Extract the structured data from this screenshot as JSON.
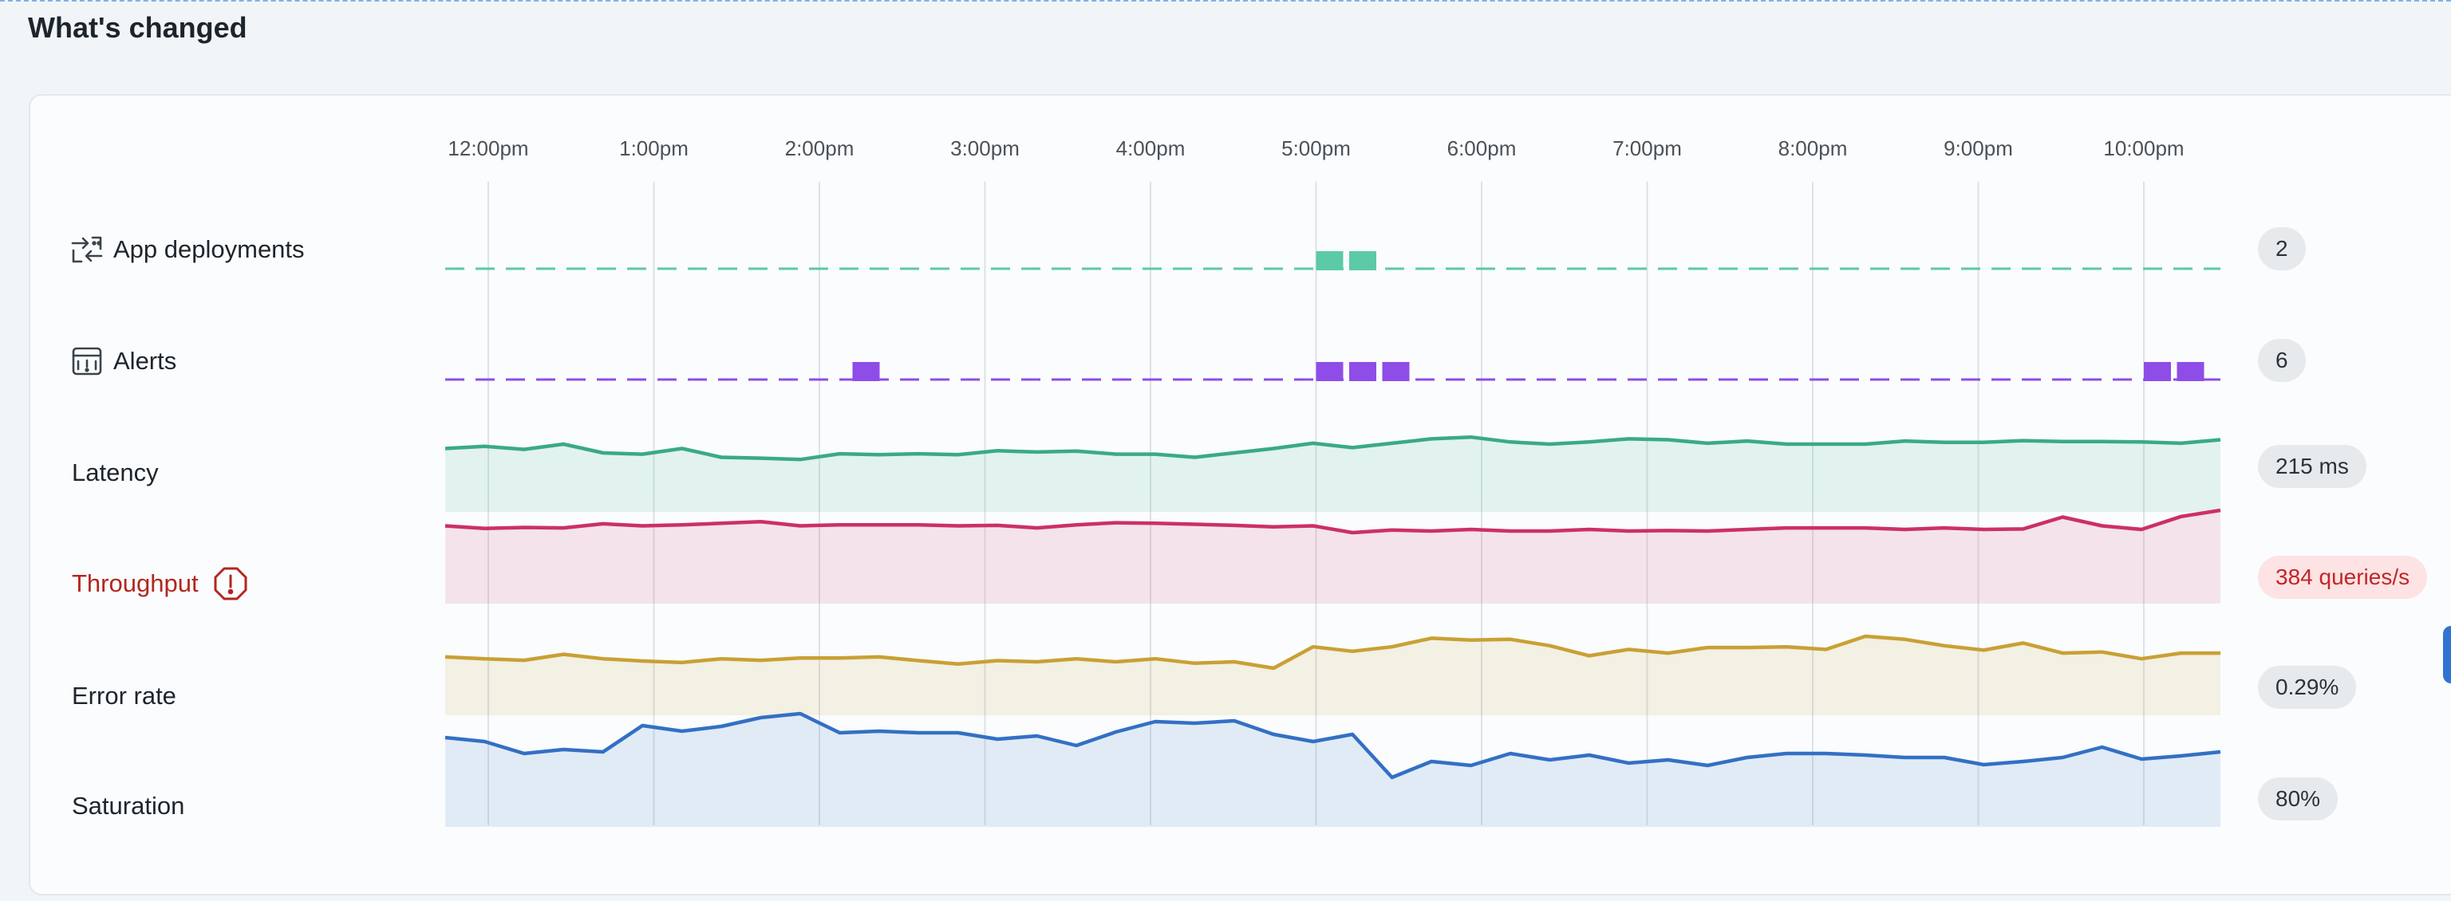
{
  "section_title": "What's changed",
  "time_axis": [
    "12:00pm",
    "1:00pm",
    "2:00pm",
    "3:00pm",
    "4:00pm",
    "5:00pm",
    "6:00pm",
    "7:00pm",
    "8:00pm",
    "9:00pm",
    "10:00pm"
  ],
  "colors": {
    "deployments": "#5cc9a7",
    "alerts": "#8f4de8",
    "latency": "#3aa98a",
    "throughput": "#cc2f6a",
    "error_rate": "#c9a034",
    "saturation": "#3370c4",
    "critical_text": "#b3261e"
  },
  "rows": {
    "app_deployments": {
      "label": "App deployments",
      "icon": "deployments-icon",
      "value": "2",
      "event_positions": [
        5.0,
        5.2
      ]
    },
    "alerts": {
      "label": "Alerts",
      "icon": "alert-bell-icon",
      "value": "6",
      "event_positions": [
        2.2,
        5.0,
        5.2,
        5.4,
        10.0,
        10.2
      ]
    },
    "latency": {
      "label": "Latency",
      "value": "215 ms",
      "series": [
        0.5,
        0.55,
        0.48,
        0.6,
        0.4,
        0.37,
        0.5,
        0.3,
        0.28,
        0.25,
        0.38,
        0.36,
        0.38,
        0.36,
        0.45,
        0.42,
        0.44,
        0.37,
        0.37,
        0.3,
        0.4,
        0.5,
        0.62,
        0.52,
        0.62,
        0.72,
        0.76,
        0.65,
        0.6,
        0.65,
        0.72,
        0.7,
        0.62,
        0.67,
        0.6,
        0.6,
        0.6,
        0.67,
        0.64,
        0.64,
        0.68,
        0.66,
        0.66,
        0.65,
        0.62,
        0.7
      ]
    },
    "throughput": {
      "label": "Throughput",
      "value": "384 queries/s",
      "critical": true,
      "series": [
        0.7,
        0.65,
        0.67,
        0.66,
        0.74,
        0.7,
        0.72,
        0.75,
        0.78,
        0.7,
        0.72,
        0.72,
        0.72,
        0.7,
        0.71,
        0.66,
        0.72,
        0.76,
        0.75,
        0.73,
        0.71,
        0.68,
        0.7,
        0.57,
        0.62,
        0.6,
        0.63,
        0.6,
        0.6,
        0.63,
        0.6,
        0.61,
        0.6,
        0.63,
        0.66,
        0.66,
        0.66,
        0.63,
        0.66,
        0.63,
        0.64,
        0.87,
        0.7,
        0.63,
        0.88,
        1.0
      ]
    },
    "error_rate": {
      "label": "Error rate",
      "value": "0.29%",
      "series": [
        0.45,
        0.4,
        0.36,
        0.52,
        0.4,
        0.34,
        0.3,
        0.4,
        0.36,
        0.42,
        0.42,
        0.45,
        0.35,
        0.26,
        0.35,
        0.32,
        0.4,
        0.32,
        0.4,
        0.28,
        0.32,
        0.15,
        0.72,
        0.6,
        0.72,
        0.95,
        0.9,
        0.92,
        0.75,
        0.48,
        0.65,
        0.55,
        0.7,
        0.7,
        0.72,
        0.65,
        1.0,
        0.92,
        0.75,
        0.63,
        0.82,
        0.55,
        0.58,
        0.4,
        0.55,
        0.55
      ]
    },
    "saturation": {
      "label": "Saturation",
      "value": "80%",
      "series": [
        0.6,
        0.55,
        0.4,
        0.45,
        0.42,
        0.75,
        0.68,
        0.74,
        0.85,
        0.9,
        0.66,
        0.68,
        0.66,
        0.66,
        0.58,
        0.62,
        0.5,
        0.67,
        0.8,
        0.78,
        0.81,
        0.64,
        0.55,
        0.64,
        0.1,
        0.3,
        0.25,
        0.4,
        0.32,
        0.38,
        0.28,
        0.32,
        0.25,
        0.35,
        0.4,
        0.4,
        0.38,
        0.35,
        0.35,
        0.26,
        0.3,
        0.35,
        0.48,
        0.33,
        0.37,
        0.42
      ]
    }
  }
}
